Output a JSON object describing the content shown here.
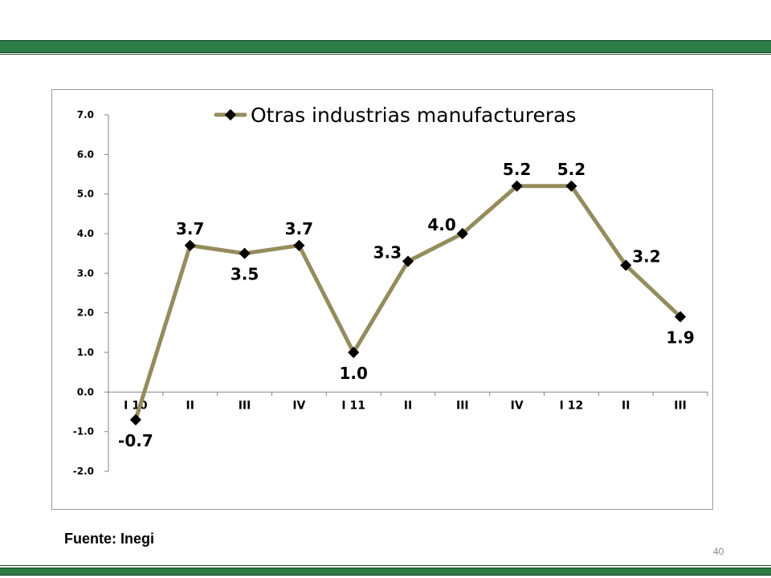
{
  "slide": {
    "source": "Fuente: Inegi",
    "page_number": "40"
  },
  "colors": {
    "band": "#2e7d47",
    "line": "#958c5d",
    "marker": "#000000"
  },
  "chart_data": {
    "type": "line",
    "title": "",
    "xlabel": "",
    "ylabel": "",
    "categories": [
      "I 10",
      "II",
      "III",
      "IV",
      "I 11",
      "II",
      "III",
      "IV",
      "I 12",
      "II",
      "III"
    ],
    "series": [
      {
        "name": "Otras industrias manufactureras",
        "values": [
          -0.7,
          3.7,
          3.5,
          3.7,
          1.0,
          3.3,
          4.0,
          5.2,
          5.2,
          3.2,
          1.9
        ],
        "labels": [
          "-0.7",
          "3.7",
          "3.5",
          "3.7",
          "1.0",
          "3.3",
          "4.0",
          "5.2",
          "5.2",
          "3.2",
          "1.9"
        ]
      }
    ],
    "ylim": [
      -2.0,
      7.0
    ],
    "yticks": [
      "7.0",
      "6.0",
      "5.0",
      "4.0",
      "3.0",
      "2.0",
      "1.0",
      "0.0",
      "-1.0",
      "-2.0"
    ],
    "legend_position": "top",
    "grid": false,
    "marker": "diamond"
  }
}
